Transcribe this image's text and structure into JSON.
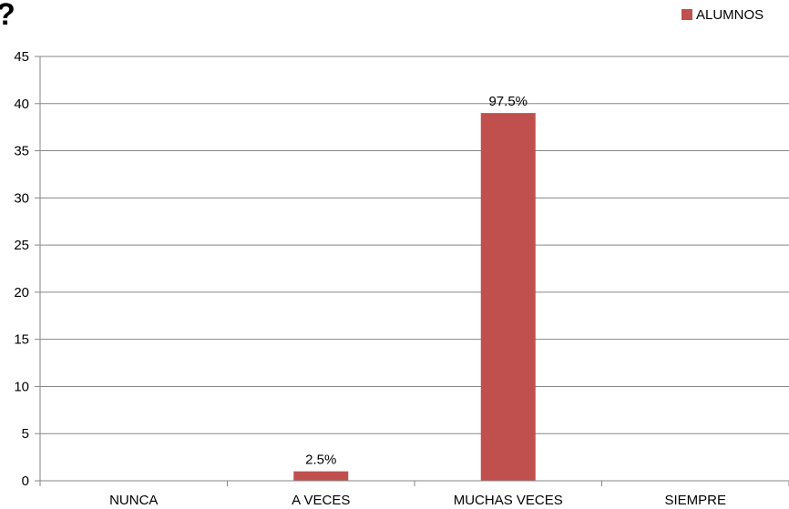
{
  "chart_data": {
    "type": "bar",
    "title": "?",
    "categories": [
      "NUNCA",
      "A VECES",
      "MUCHAS VECES",
      "SIEMPRE"
    ],
    "series": [
      {
        "name": "ALUMNOS",
        "values": [
          0,
          1,
          39,
          0
        ],
        "data_labels": [
          "",
          "2.5%",
          "97.5%",
          ""
        ]
      }
    ],
    "ylim": [
      0,
      45
    ],
    "yticks": [
      "0",
      "5",
      "10",
      "15",
      "20",
      "25",
      "30",
      "35",
      "40",
      "45"
    ],
    "ytick_values": [
      0,
      5,
      10,
      15,
      20,
      25,
      30,
      35,
      40,
      45
    ],
    "grid": true,
    "legend": "top-right",
    "colors": {
      "bar": "#C0504D",
      "grid": "#868686",
      "axis": "#868686"
    }
  }
}
